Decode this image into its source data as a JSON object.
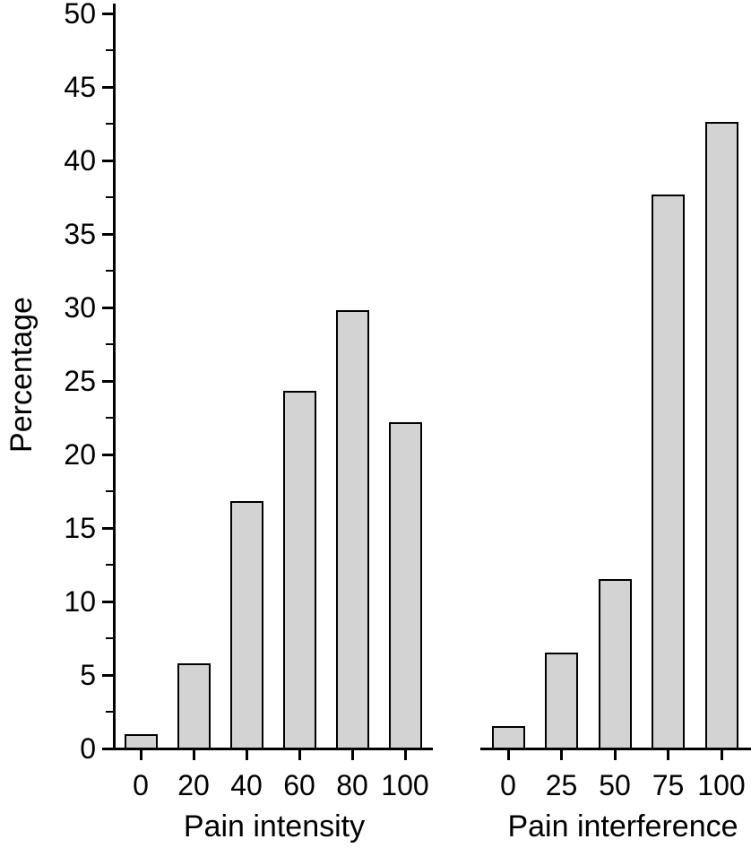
{
  "figure": {
    "background": "#ffffff",
    "axis_color": "#000000",
    "bar_fill": "#d3d3d3",
    "bar_border": "#000000",
    "y_axis": {
      "label": "Percentage",
      "min": 0,
      "max": 50,
      "major_step": 5,
      "minor_step": 2.5,
      "major_tick_labels": [
        "0",
        "5",
        "10",
        "15",
        "20",
        "25",
        "30",
        "35",
        "40",
        "45",
        "50"
      ]
    }
  },
  "chart_data": [
    {
      "type": "bar",
      "panel": "left",
      "title": "",
      "xlabel": "Pain intensity",
      "ylabel": "Percentage",
      "categories": [
        "0",
        "20",
        "40",
        "60",
        "80",
        "100"
      ],
      "values": [
        1.0,
        5.8,
        16.8,
        24.3,
        29.8,
        22.2
      ],
      "ylim": [
        0,
        50
      ],
      "grid": false,
      "legend": false
    },
    {
      "type": "bar",
      "panel": "right",
      "title": "",
      "xlabel": "Pain interference",
      "ylabel": "Percentage",
      "categories": [
        "0",
        "25",
        "50",
        "75",
        "100"
      ],
      "values": [
        1.5,
        6.5,
        11.5,
        37.7,
        42.6
      ],
      "ylim": [
        0,
        50
      ],
      "grid": false,
      "legend": false
    }
  ]
}
